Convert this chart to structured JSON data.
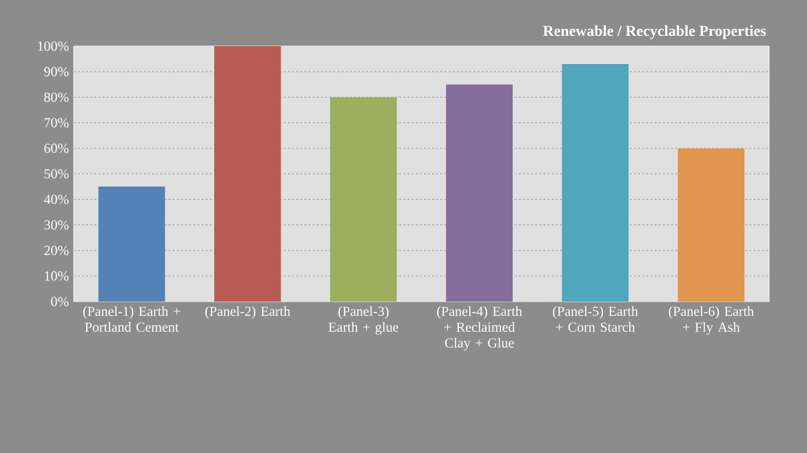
{
  "chart_data": {
    "type": "bar",
    "title": "Renewable / Recyclable Properties",
    "categories": [
      "(Panel-1) Earth + Portland Cement",
      "(Panel-2) Earth",
      "(Panel-3) Earth + glue",
      "(Panel-4) Earth + Reclaimed Clay + Glue",
      "(Panel-5) Earth + Corn Starch",
      "(Panel-6) Earth + Fly Ash"
    ],
    "values": [
      45,
      100,
      80,
      85,
      93,
      60
    ],
    "colors": [
      "#5383b6",
      "#b85a53",
      "#9baf5e",
      "#846d9c",
      "#4fa6bd",
      "#e1954e"
    ],
    "ylim": [
      0,
      100
    ],
    "yticks": [
      {
        "value": 0,
        "label": "0%"
      },
      {
        "value": 10,
        "label": "10%"
      },
      {
        "value": 20,
        "label": "20%"
      },
      {
        "value": 30,
        "label": "30%"
      },
      {
        "value": 40,
        "label": "40%"
      },
      {
        "value": 50,
        "label": "50%"
      },
      {
        "value": 60,
        "label": "60%"
      },
      {
        "value": 70,
        "label": "70%"
      },
      {
        "value": 80,
        "label": "80%"
      },
      {
        "value": 90,
        "label": "90%"
      },
      {
        "value": 100,
        "label": "100%"
      }
    ],
    "grid": "y"
  }
}
